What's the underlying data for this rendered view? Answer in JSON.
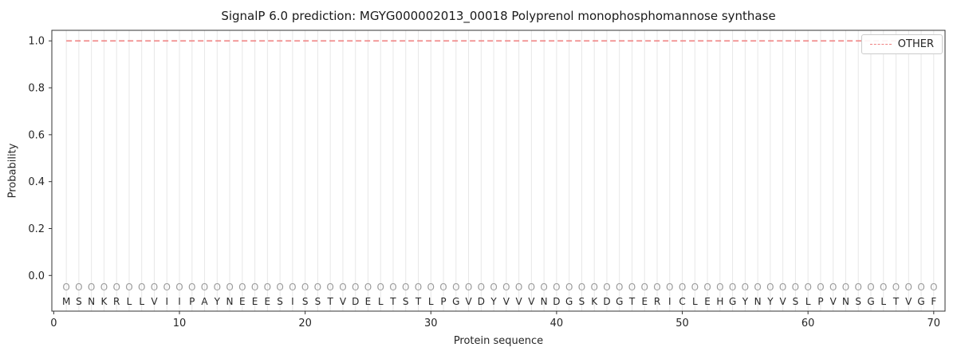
{
  "chart_data": {
    "type": "line",
    "title": "SignalP 6.0 prediction: MGYG000002013_00018 Polyprenol monophosphomannose synthase",
    "xlabel": "Protein sequence",
    "ylabel": "Probability",
    "x_ticks": [
      0,
      10,
      20,
      30,
      40,
      50,
      60,
      70
    ],
    "y_ticks": [
      0.0,
      0.2,
      0.4,
      0.6,
      0.8,
      1.0
    ],
    "xlim": [
      -0.15,
      70.9
    ],
    "ylim": [
      -0.152,
      1.045
    ],
    "grid": "vertical-line-per-residue",
    "legend": {
      "position": "upper right",
      "label": "OTHER"
    },
    "series": [
      {
        "name": "OTHER",
        "color": "#f08080",
        "style": "dashed",
        "x": [
          1,
          70
        ],
        "values": [
          1.0,
          1.0
        ]
      }
    ],
    "per_residue_label": "O",
    "per_residue_label_y": -0.05,
    "sequence_y": -0.112,
    "sequence": [
      "M",
      "S",
      "N",
      "K",
      "R",
      "L",
      "L",
      "V",
      "I",
      "I",
      "P",
      "A",
      "Y",
      "N",
      "E",
      "E",
      "E",
      "S",
      "I",
      "S",
      "S",
      "T",
      "V",
      "D",
      "E",
      "L",
      "T",
      "S",
      "T",
      "L",
      "P",
      "G",
      "V",
      "D",
      "Y",
      "V",
      "V",
      "V",
      "N",
      "D",
      "G",
      "S",
      "K",
      "D",
      "G",
      "T",
      "E",
      "R",
      "I",
      "C",
      "L",
      "E",
      "H",
      "G",
      "Y",
      "N",
      "Y",
      "V",
      "S",
      "L",
      "P",
      "V",
      "N",
      "S",
      "G",
      "L",
      "T",
      "V",
      "G",
      "F"
    ],
    "colors": {
      "grid": "#e7e7e7",
      "spine": "#333333",
      "tick_label": "#262626",
      "sequence_letter": "#262626",
      "residue_mark": "#9c9c9c"
    }
  }
}
